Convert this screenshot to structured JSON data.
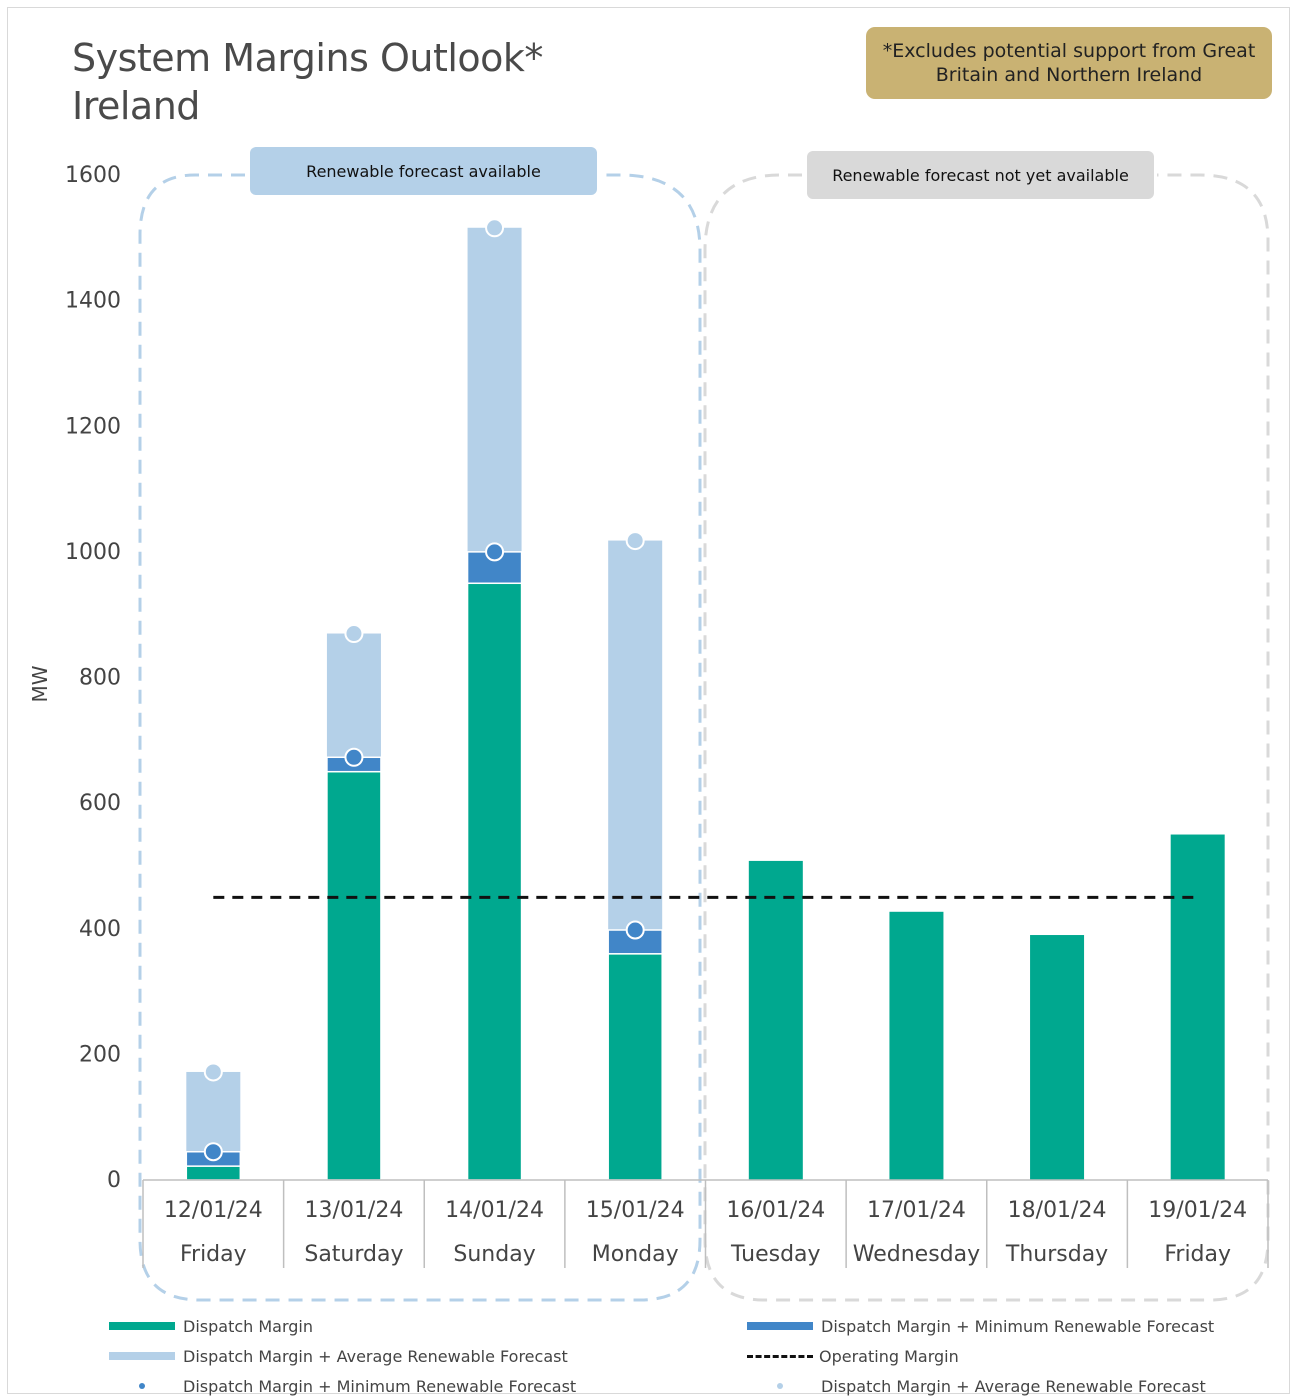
{
  "title": {
    "line1": "System Margins Outlook*",
    "line2": "Ireland"
  },
  "note": "*Excludes potential support from Great Britain and Northern Ireland",
  "regions": {
    "available": "Renewable forecast available",
    "unavailable": "Renewable forecast not yet available"
  },
  "colors": {
    "dispatch": "#00a88f",
    "min_renewable": "#4186c8",
    "avg_renewable": "#b4d0e8",
    "operating": "#111111",
    "available_outline": "#b4d0e8",
    "unavailable_outline": "#d9d9d9"
  },
  "legend": {
    "dispatch": "Dispatch Margin",
    "min_bar": "Dispatch Margin + Minimum Renewable Forecast",
    "avg_bar": "Dispatch Margin + Average Renewable Forecast",
    "operating": "Operating Margin",
    "min_dot": "Dispatch Margin + Minimum Renewable Forecast",
    "avg_dot": "Dispatch Margin + Average Renewable Forecast"
  },
  "chart_data": {
    "type": "bar",
    "ylabel": "MW",
    "ylim": [
      0,
      1600
    ],
    "yticks": [
      0,
      200,
      400,
      600,
      800,
      1000,
      1200,
      1400,
      1600
    ],
    "categories": [
      "12/01/24",
      "13/01/24",
      "14/01/24",
      "15/01/24",
      "16/01/24",
      "17/01/24",
      "18/01/24",
      "19/01/24"
    ],
    "days": [
      "Friday",
      "Saturday",
      "Sunday",
      "Monday",
      "Tuesday",
      "Wednesday",
      "Thursday",
      "Friday"
    ],
    "series": [
      {
        "name": "Dispatch Margin",
        "values": [
          22,
          650,
          950,
          360,
          508,
          427,
          390,
          550
        ]
      },
      {
        "name": "Dispatch Margin + Minimum Renewable Forecast",
        "values": [
          45,
          673,
          1000,
          398,
          null,
          null,
          null,
          null
        ]
      },
      {
        "name": "Dispatch Margin + Average Renewable Forecast",
        "values": [
          172,
          870,
          1516,
          1018,
          null,
          null,
          null,
          null
        ]
      },
      {
        "name": "Operating Margin",
        "values": [
          450,
          450,
          450,
          450,
          450,
          450,
          450,
          450
        ]
      }
    ],
    "grid": false,
    "legend_position": "bottom"
  }
}
